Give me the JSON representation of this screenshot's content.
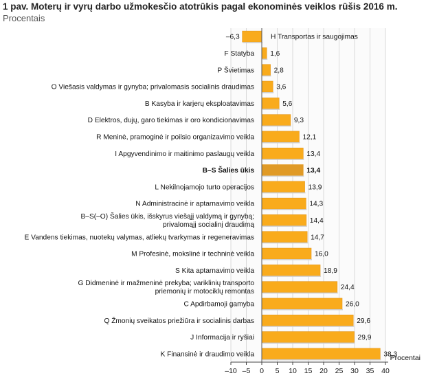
{
  "chart_data": {
    "type": "bar",
    "orientation": "horizontal",
    "title": "1 pav. Moterų ir vyrų darbo užmokesčio atotrūkis pagal ekonominės veiklos rūšis 2016 m.",
    "subtitle": "Procentais",
    "xlabel": "Procentai",
    "xlim": [
      -10,
      40
    ],
    "xticks": [
      "–10",
      "–5",
      "0",
      "5",
      "10",
      "15",
      "20",
      "25",
      "30",
      "35",
      "40"
    ],
    "grid": true,
    "colors": {
      "bar": "#f9ab1c",
      "highlight": "#e09a26"
    },
    "bars": [
      {
        "label": [
          "H Transportas ir saugojimas"
        ],
        "value": -6.3,
        "text": "–6,3"
      },
      {
        "label": [
          "F Statyba"
        ],
        "value": 1.6,
        "text": "1,6"
      },
      {
        "label": [
          "P Švietimas"
        ],
        "value": 2.8,
        "text": "2,8"
      },
      {
        "label": [
          "O Viešasis valdymas ir gynyba; privalomasis socialinis draudimas"
        ],
        "value": 3.6,
        "text": "3,6"
      },
      {
        "label": [
          "B Kasyba ir karjerų eksploatavimas"
        ],
        "value": 5.6,
        "text": "5,6"
      },
      {
        "label": [
          "D Elektros, dujų, garo tiekimas ir oro kondicionavimas"
        ],
        "value": 9.3,
        "text": "9,3"
      },
      {
        "label": [
          "R Meninė, pramoginė ir poilsio organizavimo veikla"
        ],
        "value": 12.1,
        "text": "12,1"
      },
      {
        "label": [
          "I Apgyvendinimo ir maitinimo paslaugų veikla"
        ],
        "value": 13.4,
        "text": "13,4"
      },
      {
        "label": [
          "B–S Šalies ūkis"
        ],
        "value": 13.4,
        "text": "13,4",
        "highlight": true
      },
      {
        "label": [
          "L Nekilnojamojo turto operacijos"
        ],
        "value": 13.9,
        "text": "13,9"
      },
      {
        "label": [
          "N Administracinė ir aptarnavimo veikla"
        ],
        "value": 14.3,
        "text": "14,3"
      },
      {
        "label": [
          "B–S(–O) Šalies ūkis, išskyrus viešąjį valdymą ir gynybą;",
          "privalomąjį socialinį draudimą"
        ],
        "value": 14.4,
        "text": "14,4"
      },
      {
        "label": [
          "E Vandens tiekimas, nuotekų valymas, atliekų tvarkymas ir regeneravimas"
        ],
        "value": 14.7,
        "text": "14,7"
      },
      {
        "label": [
          "M Profesinė, mokslinė ir techninė veikla"
        ],
        "value": 16.0,
        "text": "16,0"
      },
      {
        "label": [
          "S Kita aptarnavimo veikla"
        ],
        "value": 18.9,
        "text": "18,9"
      },
      {
        "label": [
          "G Didmeninė ir mažmeninė prekyba; variklinių transporto",
          "priemonių ir motociklų remontas"
        ],
        "value": 24.4,
        "text": "24,4"
      },
      {
        "label": [
          "C Apdirbamoji gamyba"
        ],
        "value": 26.0,
        "text": "26,0"
      },
      {
        "label": [
          "Q Žmonių sveikatos priežiūra ir socialinis darbas"
        ],
        "value": 29.6,
        "text": "29,6"
      },
      {
        "label": [
          "J Informacija ir ryšiai"
        ],
        "value": 29.9,
        "text": "29,9"
      },
      {
        "label": [
          "K Finansinė ir draudimo veikla"
        ],
        "value": 38.3,
        "text": "38,3"
      }
    ]
  }
}
